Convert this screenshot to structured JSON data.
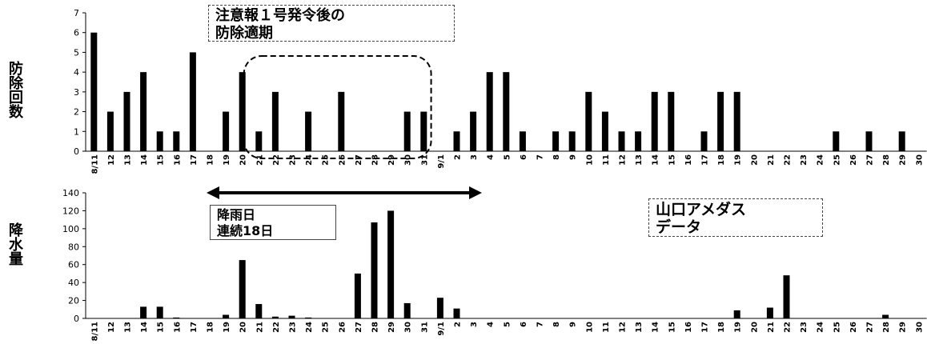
{
  "chart_data": [
    {
      "type": "bar",
      "ylabel": "防除回数",
      "ylim": [
        0,
        7
      ],
      "yticks": [
        0,
        1,
        2,
        3,
        4,
        5,
        6,
        7
      ],
      "categories": [
        "8/11",
        "12",
        "13",
        "14",
        "15",
        "16",
        "17",
        "18",
        "19",
        "20",
        "21",
        "22",
        "23",
        "24",
        "25",
        "26",
        "27",
        "28",
        "29",
        "30",
        "31",
        "9/1",
        "2",
        "3",
        "4",
        "5",
        "6",
        "7",
        "8",
        "9",
        "10",
        "11",
        "12",
        "13",
        "14",
        "15",
        "16",
        "17",
        "18",
        "19",
        "20",
        "21",
        "22",
        "23",
        "24",
        "25",
        "26",
        "27",
        "28",
        "29",
        "30"
      ],
      "values": [
        6,
        2,
        3,
        4,
        1,
        1,
        5,
        0,
        2,
        4,
        1,
        3,
        0,
        2,
        0,
        3,
        0,
        0,
        0,
        2,
        2,
        0,
        1,
        2,
        4,
        4,
        1,
        0,
        1,
        1,
        3,
        2,
        1,
        1,
        3,
        3,
        0,
        1,
        3,
        3,
        0,
        0,
        0,
        0,
        0,
        1,
        0,
        1,
        0,
        1,
        0
      ],
      "annotation": "注意報１号発令後の防除適期"
    },
    {
      "type": "bar",
      "ylabel": "降水量",
      "ylim": [
        0,
        140
      ],
      "yticks": [
        0,
        20,
        40,
        60,
        80,
        100,
        120,
        140
      ],
      "categories": [
        "8/11",
        "12",
        "13",
        "14",
        "15",
        "16",
        "17",
        "18",
        "19",
        "20",
        "21",
        "22",
        "23",
        "24",
        "25",
        "26",
        "27",
        "28",
        "29",
        "30",
        "31",
        "9/1",
        "2",
        "3",
        "4",
        "5",
        "6",
        "7",
        "8",
        "9",
        "10",
        "11",
        "12",
        "13",
        "14",
        "15",
        "16",
        "17",
        "18",
        "19",
        "20",
        "21",
        "22",
        "23",
        "24",
        "25",
        "26",
        "27",
        "28",
        "29",
        "30"
      ],
      "values": [
        0,
        0,
        0,
        13,
        13,
        1,
        0,
        0,
        4,
        65,
        16,
        2,
        3,
        1,
        0,
        0,
        50,
        107,
        120,
        17,
        0,
        23,
        11,
        0,
        0,
        0,
        0,
        0,
        0,
        0,
        0,
        0,
        0,
        0,
        0,
        0,
        0,
        0,
        0,
        9,
        0,
        12,
        48,
        0,
        0,
        0,
        0,
        0,
        4,
        0,
        0
      ],
      "annotations": [
        "降雨日",
        "連続18日",
        "山口アメダス",
        "データ"
      ]
    }
  ],
  "labels": {
    "top_ylabel": "防除回数",
    "bottom_ylabel": "降水量",
    "top_note_line1": "注意報１号発令後の",
    "top_note_line2": "防除適期",
    "rain_note_line1": "降雨日",
    "rain_note_line2": "連続18日",
    "source_note_line1": "山口アメダス",
    "source_note_line2": "データ"
  }
}
